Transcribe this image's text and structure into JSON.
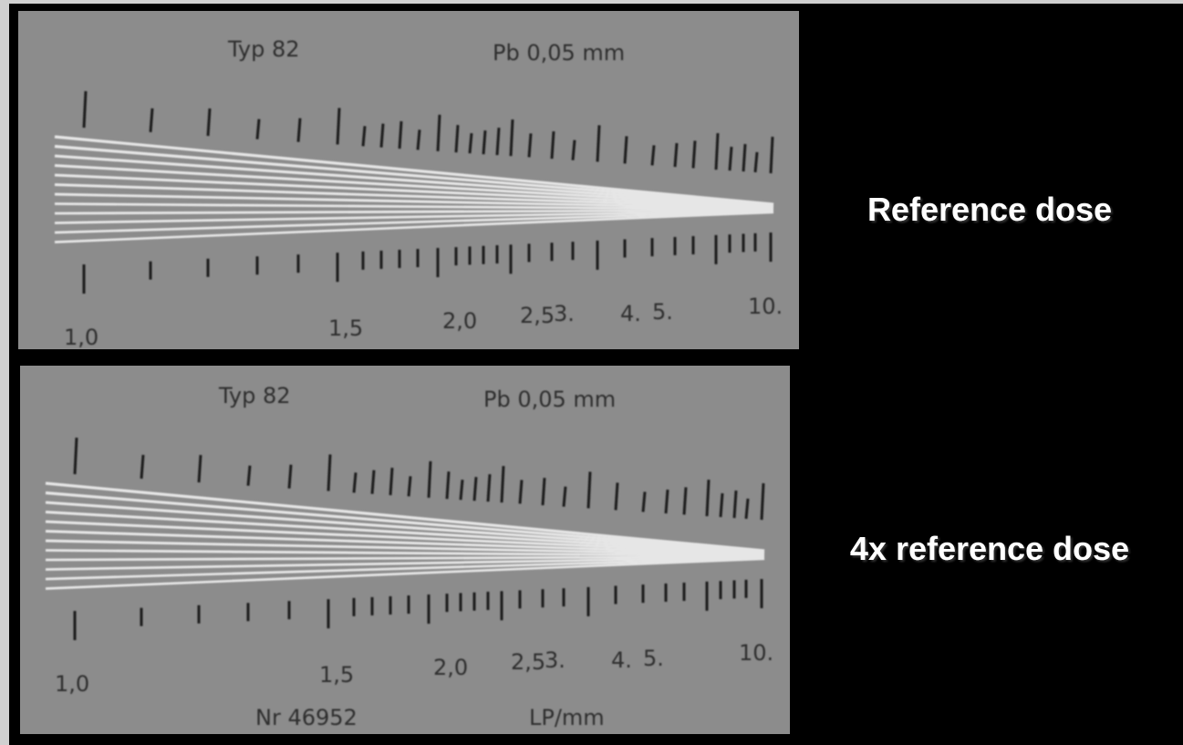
{
  "panels": [
    {
      "type_label": "Typ 82",
      "material": "Pb 0,05 mm",
      "scale_labels": [
        "1,0",
        "1,5",
        "2,0",
        "2,5",
        "3.",
        "4.",
        "5.",
        "10."
      ],
      "caption": "Reference dose"
    },
    {
      "type_label": "Typ 82",
      "material": "Pb 0,05 mm",
      "scale_labels": [
        "1,0",
        "1,5",
        "2,0",
        "2,5",
        "3.",
        "4.",
        "5.",
        "10."
      ],
      "serial": "Nr 46952",
      "unit": "LP/mm",
      "caption": "4x reference dose"
    }
  ]
}
